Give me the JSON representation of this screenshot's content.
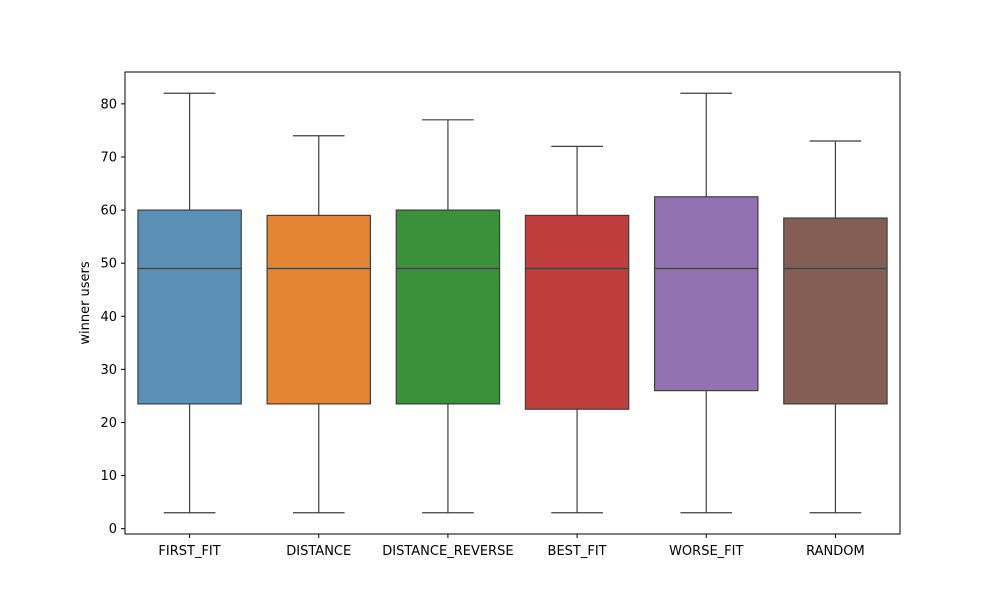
{
  "chart_data": {
    "type": "box",
    "title": "",
    "xlabel": "",
    "ylabel": "winner users",
    "ylim": [
      -1,
      86
    ],
    "yticks": [
      0,
      10,
      20,
      30,
      40,
      50,
      60,
      70,
      80
    ],
    "grid": false,
    "categories": [
      "FIRST_FIT",
      "DISTANCE",
      "DISTANCE_REVERSE",
      "BEST_FIT",
      "WORSE_FIT",
      "RANDOM"
    ],
    "boxes": [
      {
        "category": "FIRST_FIT",
        "whisker_low": 3,
        "q1": 23.5,
        "median": 49,
        "q3": 60,
        "whisker_high": 82,
        "color": "#5b90b6"
      },
      {
        "category": "DISTANCE",
        "whisker_low": 3,
        "q1": 23.5,
        "median": 49,
        "q3": 59,
        "whisker_high": 74,
        "color": "#e38532"
      },
      {
        "category": "DISTANCE_REVERSE",
        "whisker_low": 3,
        "q1": 23.5,
        "median": 49,
        "q3": 60,
        "whisker_high": 77,
        "color": "#3a913a"
      },
      {
        "category": "BEST_FIT",
        "whisker_low": 3,
        "q1": 22.5,
        "median": 49,
        "q3": 59,
        "whisker_high": 72,
        "color": "#c03d3e"
      },
      {
        "category": "WORSE_FIT",
        "whisker_low": 3,
        "q1": 26,
        "median": 49,
        "q3": 62.5,
        "whisker_high": 82,
        "color": "#9272b1"
      },
      {
        "category": "RANDOM",
        "whisker_low": 3,
        "q1": 23.5,
        "median": 49,
        "q3": 58.5,
        "whisker_high": 73,
        "color": "#845e54"
      }
    ]
  }
}
